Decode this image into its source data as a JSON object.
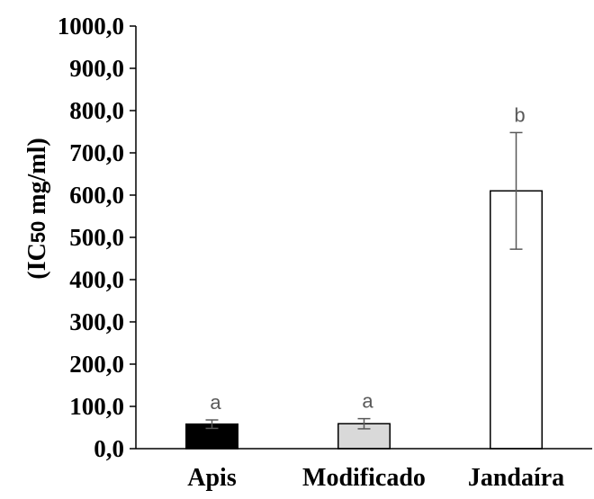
{
  "chart_data": {
    "type": "bar",
    "title": "",
    "xlabel": "",
    "ylabel": {
      "prefix": "(IC",
      "subscript": "50",
      "suffix": " mg/ml)"
    },
    "categories": [
      "Apis",
      "Modificado",
      "Jandaíra"
    ],
    "values": [
      58.0,
      59.0,
      610.0
    ],
    "error": [
      10.0,
      12.0,
      138.0
    ],
    "letters": [
      "a",
      "a",
      "b"
    ],
    "bar_colors": [
      "#000000",
      "#d9d9d9",
      "#ffffff"
    ],
    "ylim": [
      0,
      1000
    ],
    "yticks": [
      0,
      100,
      200,
      300,
      400,
      500,
      600,
      700,
      800,
      900,
      1000
    ],
    "ytick_labels": [
      "0,0",
      "100,0",
      "200,0",
      "300,0",
      "400,0",
      "500,0",
      "600,0",
      "700,0",
      "800,0",
      "900,0",
      "1000,0"
    ],
    "grid": false,
    "legend": "none"
  }
}
